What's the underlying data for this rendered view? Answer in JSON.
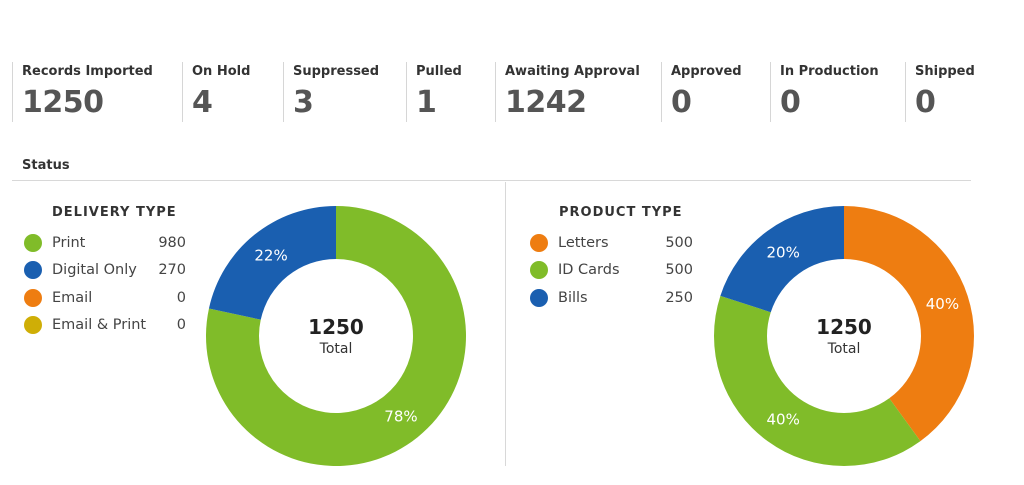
{
  "stats": [
    {
      "label": "Records Imported",
      "value": "1250"
    },
    {
      "label": "On Hold",
      "value": "4"
    },
    {
      "label": "Suppressed",
      "value": "3"
    },
    {
      "label": "Pulled",
      "value": "1"
    },
    {
      "label": "Awaiting Approval",
      "value": "1242"
    },
    {
      "label": "Approved",
      "value": "0"
    },
    {
      "label": "In Production",
      "value": "0"
    },
    {
      "label": "Shipped",
      "value": "0"
    }
  ],
  "status_heading": "Status",
  "delivery": {
    "title": "DELIVERY TYPE",
    "items": [
      {
        "name": "Print",
        "value": "980",
        "color": "#80bc29"
      },
      {
        "name": "Digital Only",
        "value": "270",
        "color": "#1a5fb0"
      },
      {
        "name": "Email",
        "value": "0",
        "color": "#ee7d11"
      },
      {
        "name": "Email & Print",
        "value": "0",
        "color": "#cfae06"
      }
    ],
    "total": "1250",
    "total_label": "Total"
  },
  "product": {
    "title": "PRODUCT TYPE",
    "items": [
      {
        "name": "Letters",
        "value": "500",
        "color": "#ee7d11"
      },
      {
        "name": "ID Cards",
        "value": "500",
        "color": "#80bc29"
      },
      {
        "name": "Bills",
        "value": "250",
        "color": "#1a5fb0"
      }
    ],
    "total": "1250",
    "total_label": "Total"
  },
  "chart_data": [
    {
      "type": "pie",
      "title": "DELIVERY TYPE",
      "categories": [
        "Print",
        "Digital Only",
        "Email",
        "Email & Print"
      ],
      "values": [
        980,
        270,
        0,
        0
      ],
      "labels": [
        "78%",
        "22%",
        "",
        ""
      ],
      "colors": [
        "#80bc29",
        "#1a5fb0",
        "#ee7d11",
        "#cfae06"
      ]
    },
    {
      "type": "pie",
      "title": "PRODUCT TYPE",
      "categories": [
        "Letters",
        "ID Cards",
        "Bills"
      ],
      "values": [
        500,
        500,
        250
      ],
      "labels": [
        "40%",
        "40%",
        "20%"
      ],
      "colors": [
        "#ee7d11",
        "#80bc29",
        "#1a5fb0"
      ]
    }
  ]
}
